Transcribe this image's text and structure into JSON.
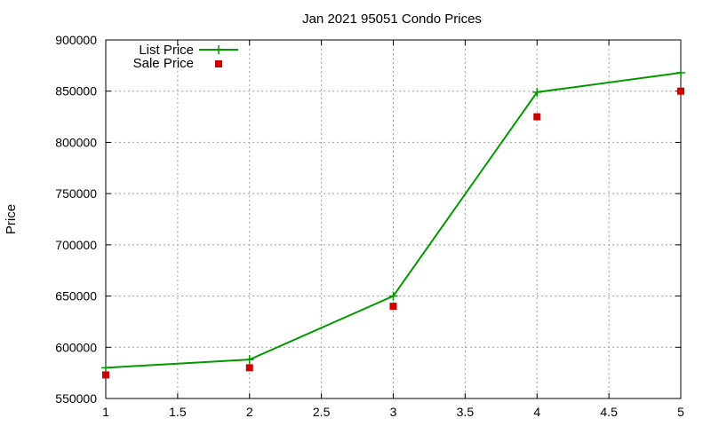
{
  "chart_data": {
    "type": "line",
    "title": "Jan 2021 95051 Condo Prices",
    "xlabel": "",
    "ylabel": "Price",
    "xlim": [
      1,
      5
    ],
    "ylim": [
      550000,
      900000
    ],
    "xticks": [
      "1",
      "1.5",
      "2",
      "2.5",
      "3",
      "3.5",
      "4",
      "4.5",
      "5"
    ],
    "yticks": [
      "550000",
      "600000",
      "650000",
      "700000",
      "750000",
      "800000",
      "850000",
      "900000"
    ],
    "grid": true,
    "legend_position": "top-left",
    "series": [
      {
        "name": "List Price",
        "style": "line-with-plus-markers",
        "color": "#009900",
        "x": [
          1,
          2,
          3,
          4,
          5
        ],
        "y": [
          580000,
          588000,
          650000,
          849000,
          868000
        ]
      },
      {
        "name": "Sale Price",
        "style": "square-markers",
        "color": "#cc0000",
        "x": [
          1,
          2,
          3,
          4,
          5
        ],
        "y": [
          573000,
          580000,
          640000,
          825000,
          850000
        ]
      }
    ]
  }
}
